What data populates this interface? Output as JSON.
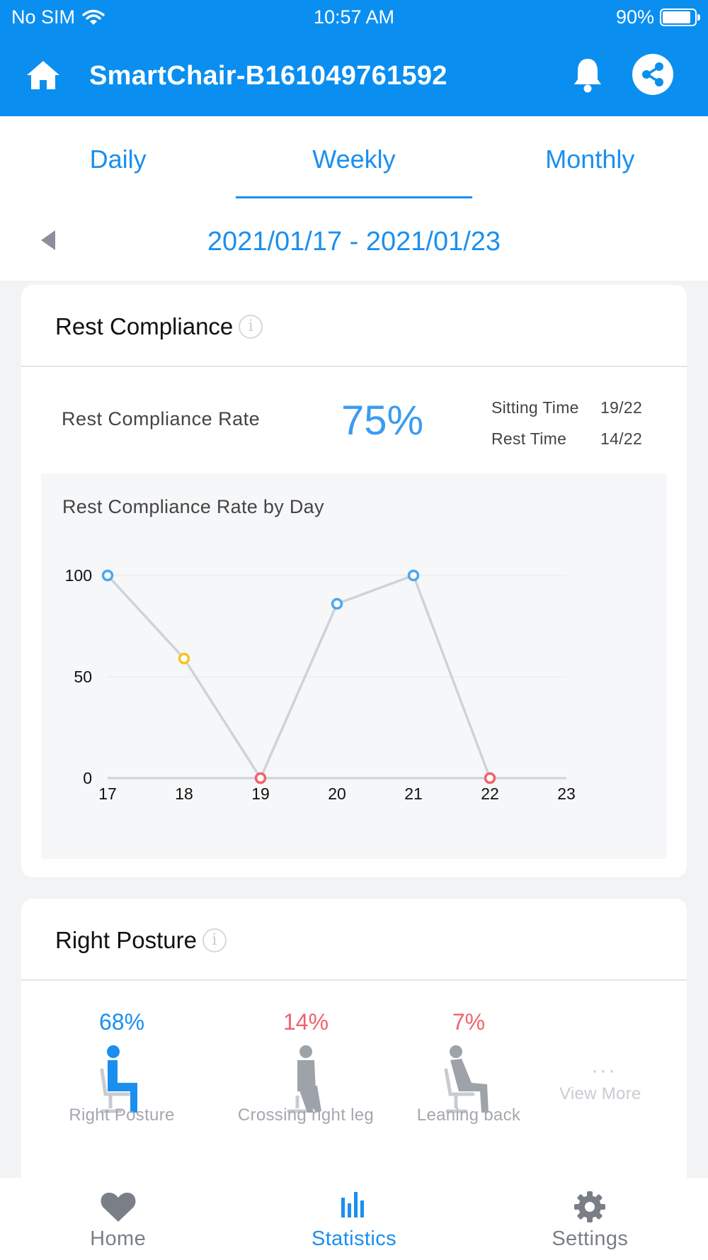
{
  "status_bar": {
    "carrier": "No SIM",
    "time": "10:57 AM",
    "battery": "90%",
    "battery_level": 0.9
  },
  "header": {
    "title": "SmartChair-B161049761592"
  },
  "tabs": [
    {
      "label": "Daily"
    },
    {
      "label": "Weekly",
      "active": true
    },
    {
      "label": "Monthly"
    }
  ],
  "date_range": "2021/01/17 - 2021/01/23",
  "rest_compliance": {
    "title": "Rest Compliance",
    "info_glyph": "i",
    "rate_label": "Rest Compliance Rate",
    "rate_value": "75%",
    "sitting_time_label": "Sitting Time",
    "sitting_time_value": "19/22",
    "rest_time_label": "Rest Time",
    "rest_time_value": "14/22",
    "chart_title": "Rest Compliance Rate by Day"
  },
  "chart_data": {
    "type": "line",
    "title": "Rest Compliance Rate by Day",
    "x": [
      17,
      18,
      19,
      20,
      21,
      22,
      23
    ],
    "x_tick_labels": [
      "17",
      "18",
      "19",
      "20",
      "21",
      "22",
      "23"
    ],
    "series": [
      {
        "values": [
          100,
          59,
          0,
          86,
          100,
          0,
          null
        ]
      }
    ],
    "ylim": [
      0,
      100
    ],
    "y_ticks": [
      0,
      50,
      100
    ],
    "y_tick_labels": [
      "0",
      "50",
      "100"
    ],
    "grid": true,
    "line_color": "#cfd2d8",
    "point_colors": [
      "#4aa8f0",
      "#f3c623",
      "#f0636a",
      "#4aa8f0",
      "#4aa8f0",
      "#f0636a"
    ]
  },
  "right_posture": {
    "title": "Right Posture",
    "info_glyph": "i",
    "items": [
      {
        "percent": "68%",
        "label": "Right Posture",
        "color": "#1a8ff0",
        "icon": "right-posture-icon"
      },
      {
        "percent": "14%",
        "label": "Crossing right leg",
        "color": "#f0636a",
        "icon": "crossing-leg-icon"
      },
      {
        "percent": "7%",
        "label": "Leaning back",
        "color": "#f0636a",
        "icon": "leaning-back-icon"
      }
    ],
    "more_dots": "···",
    "view_more": "View More"
  },
  "tab_bar": [
    {
      "label": "Home",
      "icon": "heart-icon"
    },
    {
      "label": "Statistics",
      "icon": "bar-chart-icon",
      "active": true
    },
    {
      "label": "Settings",
      "icon": "gear-icon"
    }
  ],
  "colors": {
    "primary": "#0a8ff0",
    "accent": "#1a8ff0",
    "warning": "#f0636a"
  }
}
